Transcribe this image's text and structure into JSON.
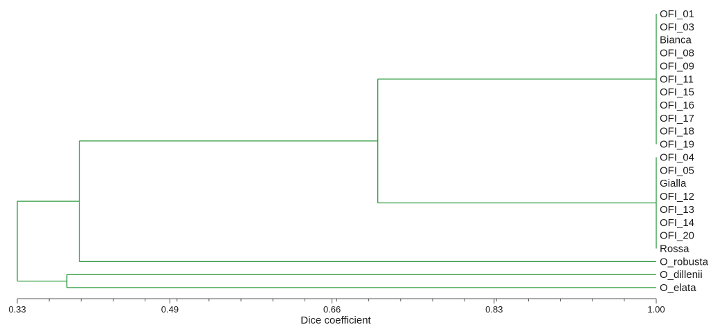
{
  "chart_data": {
    "type": "dendrogram",
    "xlabel": "Dice coefficient",
    "xlim": [
      0.33,
      1.0
    ],
    "ticks": [
      {
        "value": 0.33,
        "label": "0.33"
      },
      {
        "value": 0.49,
        "label": "0.49"
      },
      {
        "value": 0.66,
        "label": "0.66"
      },
      {
        "value": 0.83,
        "label": "0.83"
      },
      {
        "value": 1.0,
        "label": "1.00"
      }
    ],
    "minor_tick_step": 0.0335,
    "line_color": "#2e9a3e",
    "leaves": [
      "OFI_01",
      "OFI_03",
      "Bianca",
      "OFI_08",
      "OFI_09",
      "OFI_11",
      "OFI_15",
      "OFI_16",
      "OFI_17",
      "OFI_18",
      "OFI_19",
      "OFI_04",
      "OFI_05",
      "Gialla",
      "OFI_12",
      "OFI_13",
      "OFI_14",
      "OFI_20",
      "Rossa",
      "O_robusta",
      "O_dillenii",
      "O_elata"
    ],
    "clusters": [
      {
        "id": "A",
        "members": [
          0,
          1,
          2,
          3,
          4,
          5,
          6,
          7,
          8,
          9,
          10
        ],
        "similarity": 1.0
      },
      {
        "id": "B",
        "members": [
          11,
          12,
          13,
          14,
          15,
          16,
          17,
          18
        ],
        "similarity": 1.0
      },
      {
        "id": "C",
        "merge": [
          "A",
          "B"
        ],
        "similarity": 0.708
      },
      {
        "id": "D",
        "merge": [
          "C",
          19
        ],
        "similarity": 0.395
      },
      {
        "id": "E",
        "merge": [
          20,
          21
        ],
        "similarity": 0.382
      },
      {
        "id": "F",
        "merge": [
          "D",
          "E"
        ],
        "similarity": 0.33
      }
    ]
  }
}
